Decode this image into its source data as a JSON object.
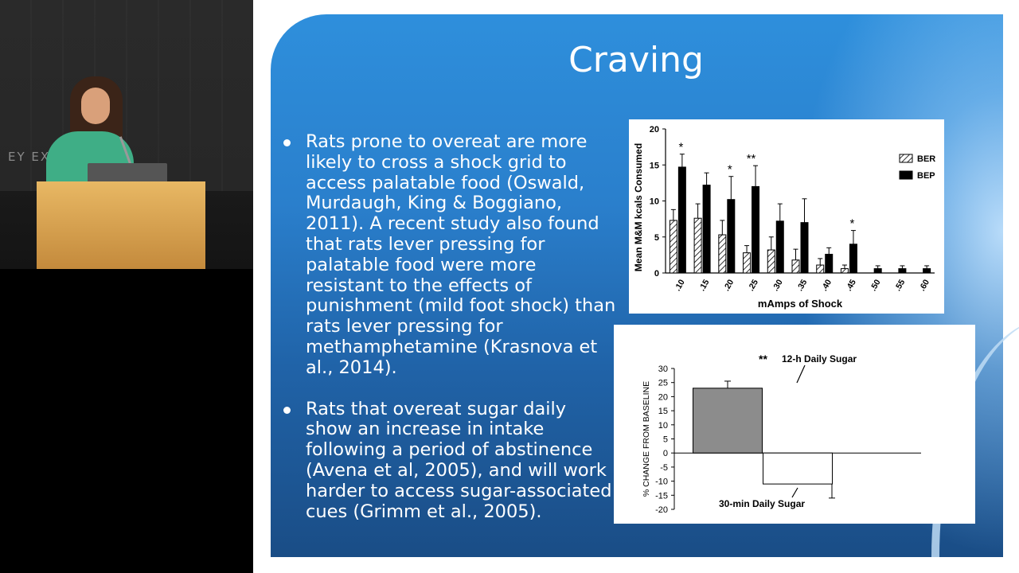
{
  "video": {
    "exit_sign": "EY EXIT"
  },
  "slide": {
    "title": "Craving",
    "bullets": [
      "Rats prone to overeat are more likely to cross a shock grid to access palatable food (Oswald, Murdaugh, King & Boggiano, 2011). A recent study also found that rats lever pressing for palatable food were more resistant to the effects of punishment (mild foot shock) than rats lever pressing for methamphetamine (Krasnova et al., 2014).",
      "Rats that overeat sugar daily show an increase in intake following a period of abstinence (Avena et al, 2005), and will work harder to access sugar-associated cues (Grimm et al., 2005)."
    ]
  },
  "colors": {
    "slide_blue": "#2a7fcc",
    "slide_dark_blue": "#1a4d86",
    "bar_black": "#000000",
    "bar_gray": "#8c8c8c"
  },
  "chart_data": [
    {
      "type": "bar",
      "xlabel": "mAmps of Shock",
      "ylabel": "Mean M&M kcals Consumed",
      "ylim": [
        0,
        20
      ],
      "yticks": [
        "0",
        "5",
        "10",
        "15",
        "20"
      ],
      "categories": [
        ".10",
        ".15",
        ".20",
        ".25",
        ".30",
        ".35",
        ".40",
        ".45",
        ".50",
        ".55",
        ".60"
      ],
      "legend_position": "right",
      "series": [
        {
          "name": "BER",
          "pattern": "hatched",
          "values": [
            7.3,
            7.6,
            5.3,
            2.8,
            3.2,
            1.8,
            1.1,
            0.6,
            0,
            0,
            0
          ],
          "errors": [
            1.5,
            2.0,
            2.0,
            1.0,
            1.8,
            1.5,
            0.9,
            0.5,
            0,
            0,
            0
          ]
        },
        {
          "name": "BEP",
          "pattern": "solid",
          "values": [
            14.7,
            12.2,
            10.2,
            12.0,
            7.2,
            7.0,
            2.6,
            4.0,
            0.6,
            0.6,
            0.6
          ],
          "errors": [
            1.8,
            1.7,
            3.2,
            2.9,
            2.4,
            3.3,
            0.9,
            1.9,
            0.4,
            0.4,
            0.4
          ]
        }
      ],
      "annotations": [
        {
          "category": ".10",
          "text": "*"
        },
        {
          "category": ".20",
          "text": "*"
        },
        {
          "category": ".25",
          "text": "**"
        },
        {
          "category": ".45",
          "text": "*"
        }
      ]
    },
    {
      "type": "bar",
      "ylabel": "% CHANGE FROM BASELINE",
      "ylim": [
        -20,
        30
      ],
      "yticks": [
        "30",
        "25",
        "20",
        "15",
        "10",
        "5",
        "0",
        "-5",
        "-10",
        "-15",
        "-20"
      ],
      "categories": [
        "12-h Daily Sugar",
        "30-min Daily Sugar"
      ],
      "values": [
        23,
        -11
      ],
      "errors": [
        2.5,
        5
      ],
      "bar_colors": [
        "#8c8c8c",
        "#ffffff"
      ],
      "annotations": [
        {
          "category": "12-h Daily Sugar",
          "text": "**"
        }
      ]
    }
  ]
}
